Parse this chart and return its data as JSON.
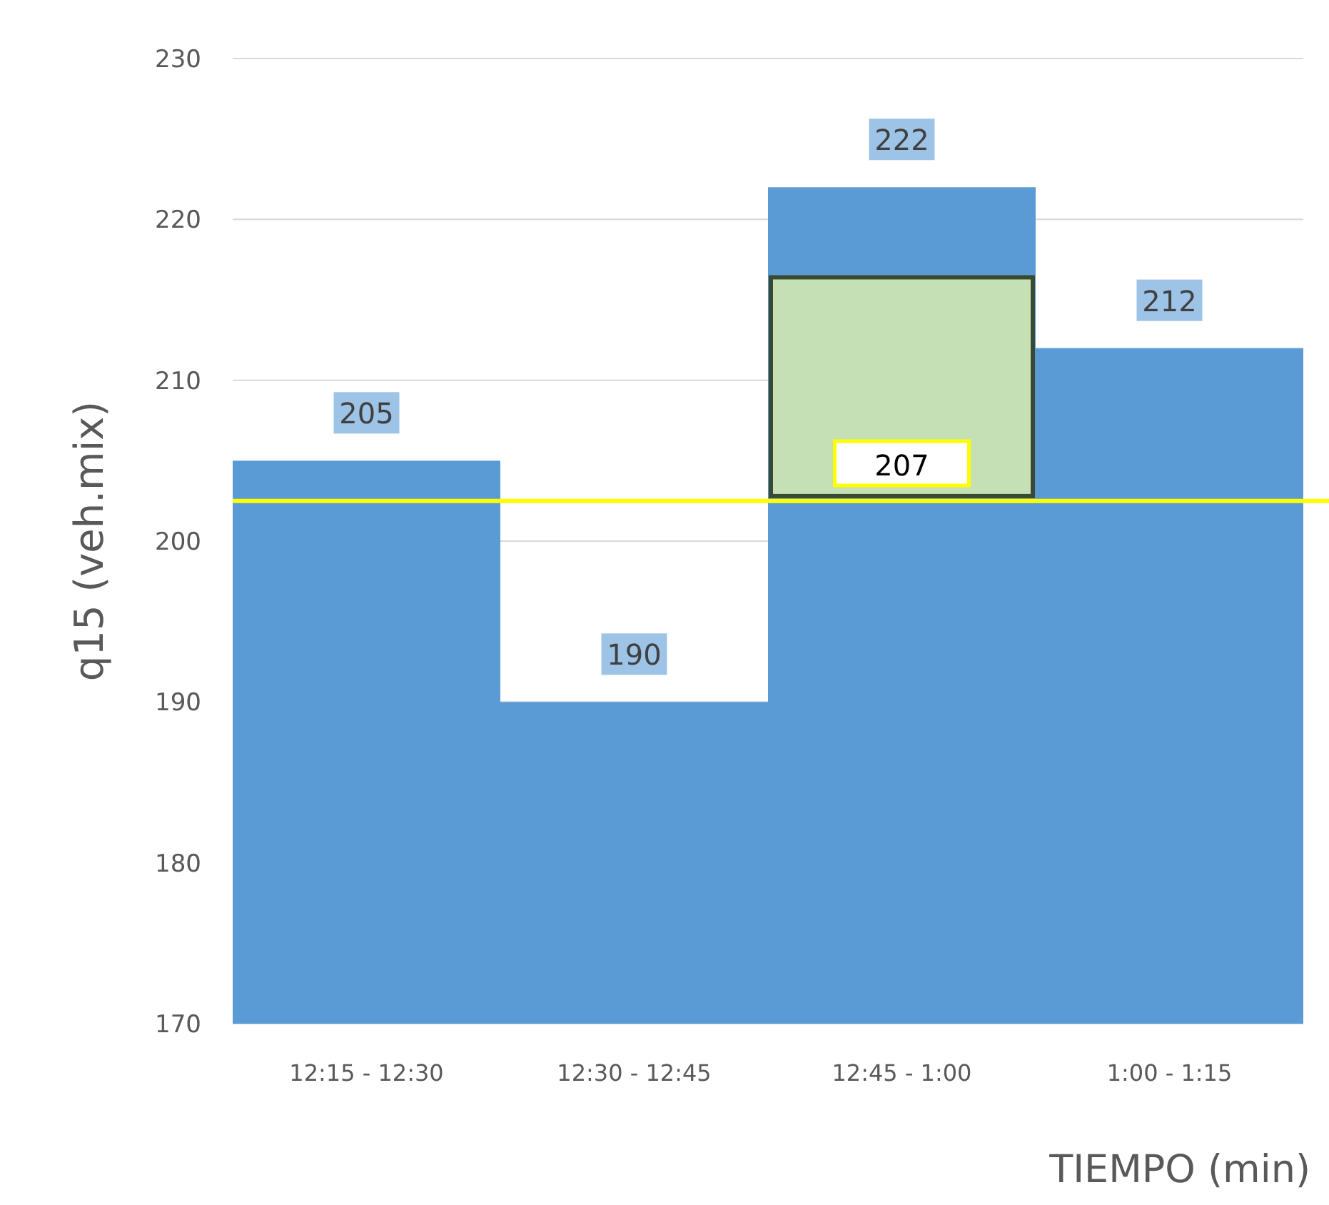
{
  "chart_data": {
    "type": "bar",
    "xlabel": "TIEMPO (min)",
    "ylabel": "q15 (veh.mix)",
    "categories": [
      "12:15 - 12:30",
      "12:30 - 12:45",
      "12:45 - 1:00",
      "1:00 - 1:15"
    ],
    "series": [
      {
        "color": "#5b9bd5",
        "values": [
          205,
          190,
          222,
          212
        ],
        "value_labels": [
          "205",
          "190",
          "222",
          "212"
        ]
      },
      {
        "type": "bar",
        "color": "#c5e0b4",
        "base": [
          null,
          null,
          202.8,
          null
        ],
        "values": [
          null,
          null,
          13.6,
          null
        ]
      }
    ],
    "ylim": [
      170,
      230
    ],
    "yticks": [
      170,
      180,
      190,
      200,
      210,
      220,
      230
    ],
    "grid": "y",
    "ref_lines": [
      {
        "axis": "y",
        "value": 202.5,
        "color": "#ffff00"
      }
    ],
    "annotations": [
      "207"
    ]
  }
}
